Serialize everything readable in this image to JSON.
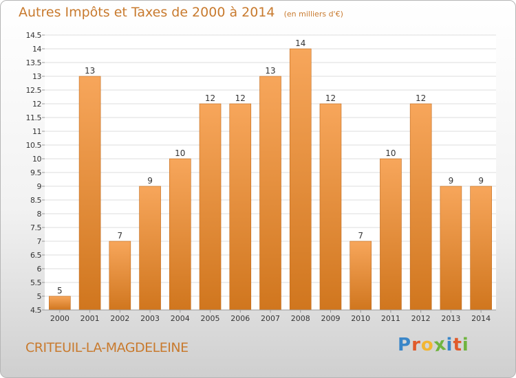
{
  "header": {
    "title": "Autres Impôts et Taxes de 2000 à 2014",
    "subtitle": "(en milliers d'€)"
  },
  "footer": {
    "town": "CRITEUIL-LA-MAGDELEINE",
    "logo": {
      "letters": [
        "P",
        "r",
        "o",
        "x",
        "i",
        "t",
        "i"
      ],
      "colors": [
        "#3a86c8",
        "#e05a2b",
        "#f2b632",
        "#6fb43f",
        "#3a86c8",
        "#e05a2b",
        "#6fb43f"
      ]
    }
  },
  "colors": {
    "bar_light": "#f7a65b",
    "bar_dark": "#d0761e",
    "accent": "#c87a2e",
    "grid": "#dedede",
    "axis_text": "#333333"
  },
  "chart_data": {
    "type": "bar",
    "categories": [
      "2000",
      "2001",
      "2002",
      "2003",
      "2004",
      "2005",
      "2006",
      "2007",
      "2008",
      "2009",
      "2010",
      "2011",
      "2012",
      "2013",
      "2014"
    ],
    "values": [
      5,
      13,
      7,
      9,
      10,
      12,
      12,
      13,
      14,
      12,
      7,
      10,
      12,
      9,
      9
    ],
    "data_labels": [
      "5",
      "13",
      "7",
      "9",
      "10",
      "12",
      "12",
      "13",
      "14",
      "12",
      "7",
      "10",
      "12",
      "9",
      "9"
    ],
    "title": "Autres Impôts et Taxes de 2000 à 2014",
    "ylim": [
      4.5,
      14.5
    ],
    "yticks": [
      4.5,
      5,
      5.5,
      6,
      6.5,
      7,
      7.5,
      8,
      8.5,
      9,
      9.5,
      10,
      10.5,
      11,
      11.5,
      12,
      12.5,
      13,
      13.5,
      14,
      14.5
    ],
    "ytick_labels": [
      "4.5",
      "5",
      "5.5",
      "6",
      "6.5",
      "7",
      "7.5",
      "8",
      "8.5",
      "9",
      "9.5",
      "10",
      "10.5",
      "11",
      "11.5",
      "12",
      "12.5",
      "13",
      "13.5",
      "14",
      "14.5"
    ],
    "grid": true
  }
}
